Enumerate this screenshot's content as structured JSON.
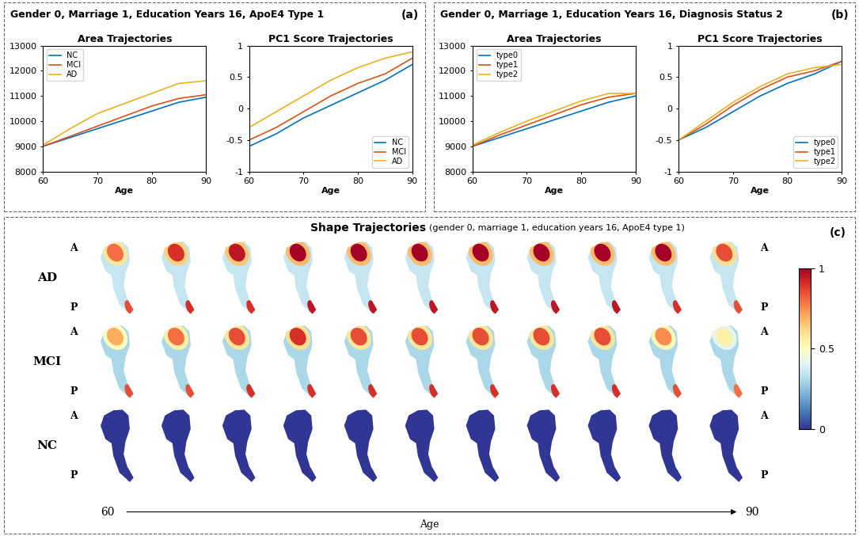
{
  "chart_data": [
    {
      "type": "line",
      "panel": "a",
      "title": "Area Trajectories",
      "xlabel": "Age",
      "x": [
        60,
        65,
        70,
        75,
        80,
        85,
        90
      ],
      "xlim": [
        60,
        90
      ],
      "xticks": [
        60,
        70,
        80,
        90
      ],
      "ylim": [
        8000,
        13000
      ],
      "yticks": [
        8000,
        9000,
        10000,
        11000,
        12000,
        13000
      ],
      "grid": false,
      "legend": "upper left",
      "series": [
        {
          "name": "NC",
          "color": "#0072BD",
          "values": [
            9000,
            9350,
            9700,
            10050,
            10400,
            10750,
            10950
          ]
        },
        {
          "name": "MCI",
          "color": "#D95319",
          "values": [
            9000,
            9400,
            9800,
            10200,
            10600,
            10900,
            11050
          ]
        },
        {
          "name": "AD",
          "color": "#EDB120",
          "values": [
            9050,
            9700,
            10300,
            10700,
            11100,
            11500,
            11600
          ]
        }
      ]
    },
    {
      "type": "line",
      "panel": "a",
      "title": "PC1 Score Trajectories",
      "xlabel": "Age",
      "x": [
        60,
        65,
        70,
        75,
        80,
        85,
        90
      ],
      "xlim": [
        60,
        90
      ],
      "xticks": [
        60,
        70,
        80,
        90
      ],
      "ylim": [
        -1,
        1
      ],
      "yticks": [
        -1,
        -0.5,
        0,
        0.5,
        1
      ],
      "grid": false,
      "legend": "lower right",
      "series": [
        {
          "name": "NC",
          "color": "#0072BD",
          "values": [
            -0.6,
            -0.4,
            -0.15,
            0.05,
            0.25,
            0.45,
            0.7
          ]
        },
        {
          "name": "MCI",
          "color": "#D95319",
          "values": [
            -0.5,
            -0.3,
            -0.05,
            0.2,
            0.4,
            0.55,
            0.8
          ]
        },
        {
          "name": "AD",
          "color": "#EDB120",
          "values": [
            -0.3,
            -0.05,
            0.2,
            0.45,
            0.65,
            0.8,
            0.9
          ]
        }
      ]
    },
    {
      "type": "line",
      "panel": "b",
      "title": "Area Trajectories",
      "xlabel": "Age",
      "x": [
        60,
        65,
        70,
        75,
        80,
        85,
        90
      ],
      "xlim": [
        60,
        90
      ],
      "xticks": [
        60,
        70,
        80,
        90
      ],
      "ylim": [
        8000,
        13000
      ],
      "yticks": [
        8000,
        9000,
        10000,
        11000,
        12000,
        13000
      ],
      "grid": false,
      "legend": "upper left",
      "series": [
        {
          "name": "type0",
          "color": "#0072BD",
          "values": [
            9000,
            9350,
            9700,
            10050,
            10400,
            10750,
            11000
          ]
        },
        {
          "name": "type1",
          "color": "#D95319",
          "values": [
            9000,
            9450,
            9850,
            10250,
            10650,
            10950,
            11100
          ]
        },
        {
          "name": "type2",
          "color": "#EDB120",
          "values": [
            9050,
            9550,
            10000,
            10400,
            10800,
            11100,
            11100
          ]
        }
      ]
    },
    {
      "type": "line",
      "panel": "b",
      "title": "PC1 Score Trajectories",
      "xlabel": "Age",
      "x": [
        60,
        65,
        70,
        75,
        80,
        85,
        90
      ],
      "xlim": [
        60,
        90
      ],
      "xticks": [
        60,
        70,
        80,
        90
      ],
      "ylim": [
        -1,
        1
      ],
      "yticks": [
        -1,
        -0.5,
        0,
        0.5,
        1
      ],
      "grid": false,
      "legend": "lower right",
      "series": [
        {
          "name": "type0",
          "color": "#0072BD",
          "values": [
            -0.5,
            -0.3,
            -0.05,
            0.2,
            0.4,
            0.55,
            0.75
          ]
        },
        {
          "name": "type1",
          "color": "#D95319",
          "values": [
            -0.5,
            -0.25,
            0.05,
            0.3,
            0.5,
            0.6,
            0.75
          ]
        },
        {
          "name": "type2",
          "color": "#EDB120",
          "values": [
            -0.5,
            -0.2,
            0.1,
            0.35,
            0.55,
            0.65,
            0.7
          ]
        }
      ]
    }
  ],
  "panels": {
    "a": {
      "header": "Gender 0, Marriage 1, Education Years 16, ApoE4 Type 1",
      "label": "(a)"
    },
    "b": {
      "header": "Gender 0, Marriage 1, Education Years 16, Diagnosis Status 2",
      "label": "(b)"
    },
    "c": {
      "title": "Shape Trajectories",
      "subtitle": "(gender 0, marriage 1, education years 16, ApoE4 type 1)",
      "label": "(c)",
      "anterior": "A",
      "posterior": "P",
      "age_start": "60",
      "age_end": "90",
      "age_label": "Age",
      "colorbar": {
        "range": [
          0,
          1
        ],
        "ticks": [
          0,
          0.5,
          1
        ]
      },
      "rows": [
        {
          "name": "AD",
          "base": 0.35,
          "anterior": [
            0.8,
            0.9,
            0.95,
            1,
            1,
            1,
            1,
            1,
            1,
            1,
            0.85
          ],
          "posterior": [
            0.85,
            0.9,
            0.9,
            0.95,
            0.95,
            0.95,
            0.95,
            0.95,
            0.95,
            0.9,
            0.85
          ]
        },
        {
          "name": "MCI",
          "base": 0.3,
          "anterior": [
            0.7,
            0.8,
            0.85,
            0.9,
            0.85,
            0.85,
            0.85,
            0.85,
            0.85,
            0.75,
            0.55
          ],
          "posterior": [
            0.85,
            0.85,
            0.9,
            0.9,
            0.9,
            0.9,
            0.9,
            0.9,
            0.9,
            0.85,
            0.8
          ]
        },
        {
          "name": "NC",
          "base": 0,
          "anterior": [
            0,
            0,
            0,
            0,
            0,
            0,
            0,
            0,
            0,
            0,
            0
          ],
          "posterior": [
            0,
            0,
            0,
            0,
            0,
            0,
            0,
            0,
            0,
            0,
            0
          ]
        }
      ]
    }
  }
}
